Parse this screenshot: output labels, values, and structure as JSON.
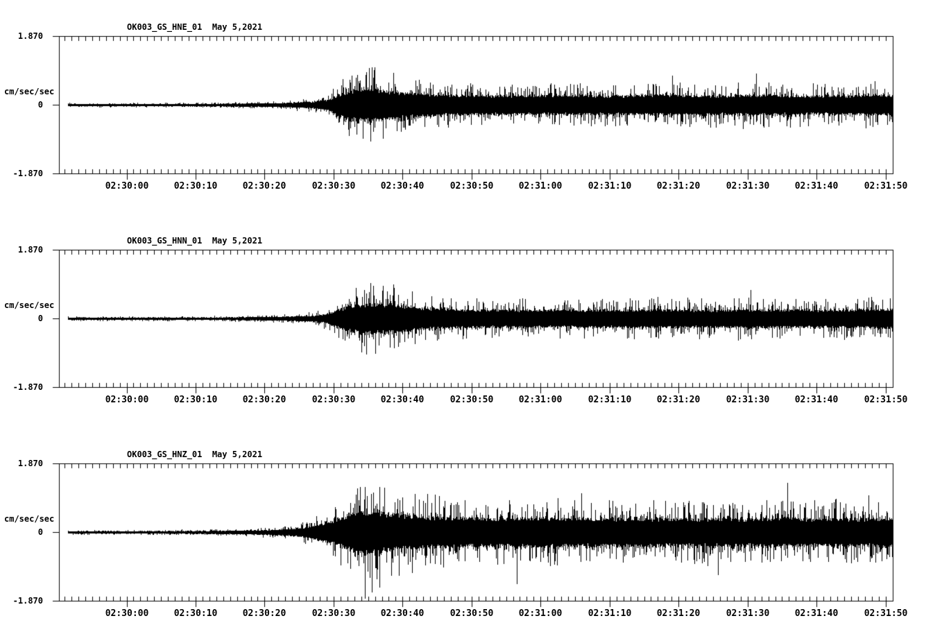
{
  "page": {
    "background": "#ffffff",
    "foreground": "#000000",
    "figure_kind": "3-channel strong-motion seismogram"
  },
  "chart_data": [
    {
      "type": "line",
      "subtype": "seismogram",
      "title_text": "OK003_GS_HNE_01  May 5,2021",
      "channel": "HNE",
      "date_label": "May 5,2021",
      "ylabel": "cm/sec/sec",
      "y_tick_labels": [
        "1.870",
        "0",
        "-1.870"
      ],
      "ylim": [
        -1.87,
        1.87
      ],
      "x_window_start": "02:29:50",
      "x_minor_step_s": 1,
      "x_major_step_s": 10,
      "x_ticks": [
        {
          "s": 10,
          "label": "02:30:00"
        },
        {
          "s": 20,
          "label": "02:30:10"
        },
        {
          "s": 30,
          "label": "02:30:20"
        },
        {
          "s": 40,
          "label": "02:30:30"
        },
        {
          "s": 50,
          "label": "02:30:40"
        },
        {
          "s": 60,
          "label": "02:30:50"
        },
        {
          "s": 70,
          "label": "02:31:00"
        },
        {
          "s": 80,
          "label": "02:31:10"
        },
        {
          "s": 90,
          "label": "02:31:20"
        },
        {
          "s": 100,
          "label": "02:31:30"
        },
        {
          "s": 110,
          "label": "02:31:40"
        },
        {
          "s": 120,
          "label": "02:31:50"
        }
      ],
      "trace_start_s": 1.5,
      "envelope_t_amp": [
        [
          1.5,
          0.055
        ],
        [
          8,
          0.055
        ],
        [
          16,
          0.06
        ],
        [
          24,
          0.068
        ],
        [
          30,
          0.09
        ],
        [
          34,
          0.13
        ],
        [
          37,
          0.19
        ],
        [
          39,
          0.32
        ],
        [
          40.5,
          0.58
        ],
        [
          42,
          0.85
        ],
        [
          43.5,
          1.0
        ],
        [
          45,
          1.05
        ],
        [
          46.5,
          1.0
        ],
        [
          48,
          0.9
        ],
        [
          50,
          0.8
        ],
        [
          53,
          0.7
        ],
        [
          56,
          0.64
        ],
        [
          60,
          0.6
        ],
        [
          65,
          0.6
        ],
        [
          70,
          0.6
        ],
        [
          75,
          0.6
        ],
        [
          80,
          0.58
        ],
        [
          85,
          0.62
        ],
        [
          88,
          0.65
        ],
        [
          92,
          0.6
        ],
        [
          96,
          0.58
        ],
        [
          100,
          0.64
        ],
        [
          104,
          0.6
        ],
        [
          108,
          0.58
        ],
        [
          112,
          0.58
        ],
        [
          116,
          0.6
        ],
        [
          121,
          0.64
        ]
      ],
      "spikes_t_amp": [
        [
          45.3,
          -0.98
        ],
        [
          45.9,
          1.02
        ],
        [
          47.1,
          -0.9
        ],
        [
          89.1,
          0.8
        ],
        [
          101.2,
          0.85
        ]
      ],
      "seed": 101
    },
    {
      "type": "line",
      "subtype": "seismogram",
      "title_text": "OK003_GS_HNN_01  May 5,2021",
      "channel": "HNN",
      "date_label": "May 5,2021",
      "ylabel": "cm/sec/sec",
      "y_tick_labels": [
        "1.870",
        "0",
        "-1.870"
      ],
      "ylim": [
        -1.87,
        1.87
      ],
      "x_window_start": "02:29:50",
      "x_minor_step_s": 1,
      "x_major_step_s": 10,
      "x_ticks": [
        {
          "s": 10,
          "label": "02:30:00"
        },
        {
          "s": 20,
          "label": "02:30:10"
        },
        {
          "s": 30,
          "label": "02:30:20"
        },
        {
          "s": 40,
          "label": "02:30:30"
        },
        {
          "s": 50,
          "label": "02:30:40"
        },
        {
          "s": 60,
          "label": "02:30:50"
        },
        {
          "s": 70,
          "label": "02:31:00"
        },
        {
          "s": 80,
          "label": "02:31:10"
        },
        {
          "s": 90,
          "label": "02:31:20"
        },
        {
          "s": 100,
          "label": "02:31:30"
        },
        {
          "s": 110,
          "label": "02:31:40"
        },
        {
          "s": 120,
          "label": "02:31:50"
        }
      ],
      "trace_start_s": 1.5,
      "envelope_t_amp": [
        [
          1.5,
          0.055
        ],
        [
          8,
          0.055
        ],
        [
          16,
          0.06
        ],
        [
          24,
          0.065
        ],
        [
          30,
          0.085
        ],
        [
          34,
          0.12
        ],
        [
          37,
          0.17
        ],
        [
          39,
          0.28
        ],
        [
          40.5,
          0.52
        ],
        [
          42,
          0.78
        ],
        [
          43.5,
          0.92
        ],
        [
          45,
          0.97
        ],
        [
          46.5,
          0.93
        ],
        [
          48,
          0.95
        ],
        [
          50,
          0.82
        ],
        [
          53,
          0.68
        ],
        [
          56,
          0.6
        ],
        [
          60,
          0.56
        ],
        [
          65,
          0.55
        ],
        [
          70,
          0.55
        ],
        [
          75,
          0.54
        ],
        [
          80,
          0.54
        ],
        [
          85,
          0.56
        ],
        [
          90,
          0.57
        ],
        [
          95,
          0.54
        ],
        [
          100,
          0.58
        ],
        [
          105,
          0.55
        ],
        [
          110,
          0.55
        ],
        [
          115,
          0.56
        ],
        [
          121,
          0.62
        ]
      ],
      "spikes_t_amp": [
        [
          44.7,
          -0.97
        ],
        [
          45.7,
          0.88
        ],
        [
          48.7,
          0.92
        ],
        [
          100.4,
          0.78
        ]
      ],
      "seed": 202
    },
    {
      "type": "line",
      "subtype": "seismogram",
      "title_text": "OK003_GS_HNZ_01  May 5,2021",
      "channel": "HNZ",
      "date_label": "May 5,2021",
      "ylabel": "cm/sec/sec",
      "y_tick_labels": [
        "1.870",
        "0",
        "-1.870"
      ],
      "ylim": [
        -1.87,
        1.87
      ],
      "x_window_start": "02:29:50",
      "x_minor_step_s": 1,
      "x_major_step_s": 10,
      "x_ticks": [
        {
          "s": 10,
          "label": "02:30:00"
        },
        {
          "s": 20,
          "label": "02:30:10"
        },
        {
          "s": 30,
          "label": "02:30:20"
        },
        {
          "s": 40,
          "label": "02:30:30"
        },
        {
          "s": 50,
          "label": "02:30:40"
        },
        {
          "s": 60,
          "label": "02:30:50"
        },
        {
          "s": 70,
          "label": "02:31:00"
        },
        {
          "s": 80,
          "label": "02:31:10"
        },
        {
          "s": 90,
          "label": "02:31:20"
        },
        {
          "s": 100,
          "label": "02:31:30"
        },
        {
          "s": 110,
          "label": "02:31:40"
        },
        {
          "s": 120,
          "label": "02:31:50"
        }
      ],
      "trace_start_s": 1.5,
      "envelope_t_amp": [
        [
          1.5,
          0.055
        ],
        [
          8,
          0.057
        ],
        [
          16,
          0.065
        ],
        [
          22,
          0.075
        ],
        [
          27,
          0.095
        ],
        [
          31,
          0.14
        ],
        [
          34,
          0.21
        ],
        [
          36,
          0.32
        ],
        [
          38,
          0.48
        ],
        [
          40,
          0.72
        ],
        [
          41.5,
          1.0
        ],
        [
          43,
          1.28
        ],
        [
          44.5,
          1.38
        ],
        [
          46,
          1.32
        ],
        [
          48,
          1.22
        ],
        [
          50,
          1.12
        ],
        [
          53,
          1.02
        ],
        [
          56,
          0.97
        ],
        [
          60,
          0.92
        ],
        [
          65,
          0.9
        ],
        [
          70,
          0.95
        ],
        [
          75,
          0.9
        ],
        [
          80,
          0.88
        ],
        [
          85,
          0.92
        ],
        [
          90,
          0.87
        ],
        [
          95,
          0.89
        ],
        [
          100,
          0.85
        ],
        [
          105,
          0.92
        ],
        [
          110,
          0.86
        ],
        [
          115,
          0.89
        ],
        [
          121,
          0.92
        ]
      ],
      "spikes_t_amp": [
        [
          43.8,
          1.22
        ],
        [
          44.5,
          -1.8
        ],
        [
          45.5,
          -1.62
        ],
        [
          46.6,
          -1.5
        ],
        [
          66.5,
          -1.4
        ],
        [
          75.9,
          1.05
        ],
        [
          95.7,
          -1.15
        ],
        [
          105.8,
          1.35
        ],
        [
          117.5,
          1.0
        ]
      ],
      "seed": 303
    }
  ]
}
